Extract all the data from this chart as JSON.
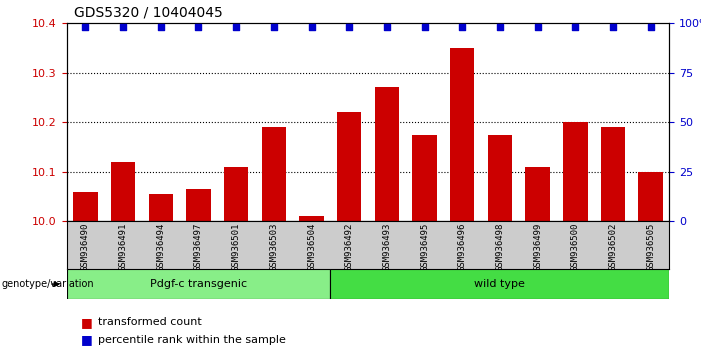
{
  "title": "GDS5320 / 10404045",
  "categories": [
    "GSM936490",
    "GSM936491",
    "GSM936494",
    "GSM936497",
    "GSM936501",
    "GSM936503",
    "GSM936504",
    "GSM936492",
    "GSM936493",
    "GSM936495",
    "GSM936496",
    "GSM936498",
    "GSM936499",
    "GSM936500",
    "GSM936502",
    "GSM936505"
  ],
  "bar_values": [
    10.06,
    10.12,
    10.055,
    10.065,
    10.11,
    10.19,
    10.01,
    10.22,
    10.27,
    10.175,
    10.35,
    10.175,
    10.11,
    10.2,
    10.19,
    10.1
  ],
  "percentile_values": [
    98,
    98,
    98,
    98,
    98,
    98,
    98,
    98,
    98,
    98,
    98,
    98,
    98,
    98,
    98,
    98
  ],
  "bar_color": "#cc0000",
  "percentile_color": "#0000cc",
  "ylim_left": [
    10.0,
    10.4
  ],
  "ylim_right": [
    0,
    100
  ],
  "yticks_left": [
    10.0,
    10.1,
    10.2,
    10.3,
    10.4
  ],
  "yticks_right": [
    0,
    25,
    50,
    75,
    100
  ],
  "ytick_labels_right": [
    "0",
    "25",
    "50",
    "75",
    "100%"
  ],
  "group1_label": "Pdgf-c transgenic",
  "group2_label": "wild type",
  "group1_count": 7,
  "group2_count": 9,
  "group1_color": "#88ee88",
  "group2_color": "#44dd44",
  "genotype_label": "genotype/variation",
  "legend_bar_label": "transformed count",
  "legend_pct_label": "percentile rank within the sample",
  "background_color": "#ffffff",
  "tick_bg_color": "#cccccc"
}
